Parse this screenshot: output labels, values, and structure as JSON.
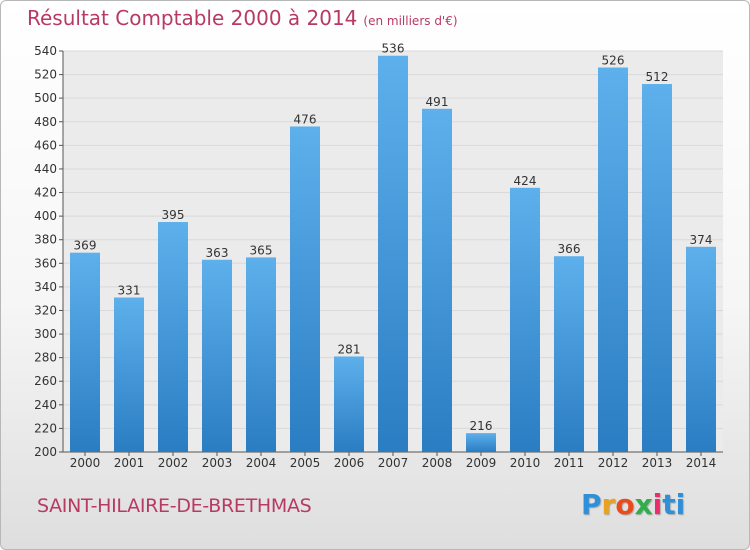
{
  "header": {
    "title": "Résultat Comptable 2000 à 2014",
    "unit": "(en milliers d'€)"
  },
  "footer": {
    "commune": "SAINT-HILAIRE-DE-BRETHMAS",
    "brand": [
      "P",
      "r",
      "o",
      "x",
      "i",
      "ti"
    ]
  },
  "colors": {
    "bar_top": "#5eb0ec",
    "bar_bottom": "#2a7dc2",
    "title": "#b83a62",
    "grid": "#d9d9d9",
    "plot_bg": "#ebebeb"
  },
  "chart_data": {
    "type": "bar",
    "title": "Résultat Comptable 2000 à 2014",
    "subtitle": "(en milliers d'€)",
    "xlabel": "",
    "ylabel": "",
    "categories": [
      "2000",
      "2001",
      "2002",
      "2003",
      "2004",
      "2005",
      "2006",
      "2007",
      "2008",
      "2009",
      "2010",
      "2011",
      "2012",
      "2013",
      "2014"
    ],
    "values": [
      369,
      331,
      395,
      363,
      365,
      476,
      281,
      536,
      491,
      216,
      424,
      366,
      526,
      512,
      374
    ],
    "ylim": [
      200,
      540
    ],
    "yticks": [
      200,
      220,
      240,
      260,
      280,
      300,
      320,
      340,
      360,
      380,
      400,
      420,
      440,
      460,
      480,
      500,
      520,
      540
    ],
    "grid": true,
    "legend": "none"
  }
}
